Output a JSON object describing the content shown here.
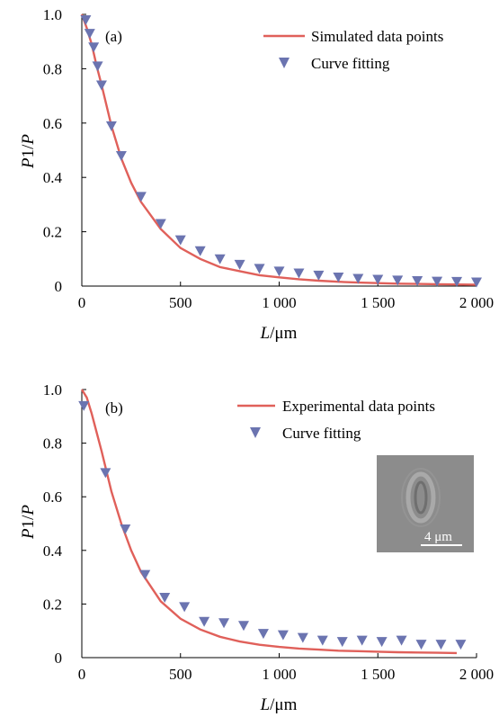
{
  "chart_data": [
    {
      "type": "line",
      "panel_label": "(a)",
      "xlabel_italic": "L",
      "xlabel_unit": "/μm",
      "ylabel_p1": "P",
      "ylabel_mid": "1/",
      "ylabel_p2": "P",
      "xlim": [
        0,
        2000
      ],
      "ylim": [
        0,
        1.0
      ],
      "x_ticks": [
        0,
        500,
        1000,
        1500,
        2000
      ],
      "x_tick_labels": [
        "0",
        "500",
        "1 000",
        "1 500",
        "2 000"
      ],
      "y_ticks": [
        0,
        0.2,
        0.4,
        0.6,
        0.8,
        1.0
      ],
      "y_tick_labels": [
        "0",
        "0.2",
        "0.4",
        "0.6",
        "0.8",
        "1.0"
      ],
      "legend_position": "top-right",
      "series": [
        {
          "name": "Simulated data points",
          "kind": "line",
          "color": "#e0605a",
          "x": [
            0,
            25,
            50,
            75,
            100,
            150,
            200,
            250,
            300,
            400,
            500,
            600,
            700,
            800,
            900,
            1000,
            1100,
            1200,
            1300,
            1400,
            1500,
            1600,
            1700,
            1800,
            1900,
            2000
          ],
          "y": [
            1.0,
            0.95,
            0.89,
            0.81,
            0.74,
            0.59,
            0.47,
            0.38,
            0.31,
            0.21,
            0.14,
            0.1,
            0.07,
            0.055,
            0.04,
            0.032,
            0.025,
            0.02,
            0.016,
            0.013,
            0.011,
            0.009,
            0.008,
            0.007,
            0.006,
            0.005
          ]
        },
        {
          "name": "Curve fitting",
          "kind": "marker",
          "color": "#6b74b0",
          "x": [
            20,
            40,
            60,
            80,
            100,
            150,
            200,
            300,
            400,
            500,
            600,
            700,
            800,
            900,
            1000,
            1100,
            1200,
            1300,
            1400,
            1500,
            1600,
            1700,
            1800,
            1900,
            2000
          ],
          "y": [
            0.98,
            0.93,
            0.88,
            0.81,
            0.74,
            0.59,
            0.48,
            0.33,
            0.23,
            0.17,
            0.13,
            0.1,
            0.08,
            0.065,
            0.055,
            0.048,
            0.04,
            0.033,
            0.028,
            0.025,
            0.022,
            0.02,
            0.018,
            0.017,
            0.015
          ]
        }
      ]
    },
    {
      "type": "line",
      "panel_label": "(b)",
      "xlabel_italic": "L",
      "xlabel_unit": "/μm",
      "ylabel_p1": "P",
      "ylabel_mid": "1/",
      "ylabel_p2": "P",
      "xlim": [
        0,
        2000
      ],
      "ylim": [
        0,
        1.0
      ],
      "x_ticks": [
        0,
        500,
        1000,
        1500,
        2000
      ],
      "x_tick_labels": [
        "0",
        "500",
        "1 000",
        "1 500",
        "2 000"
      ],
      "y_ticks": [
        0,
        0.2,
        0.4,
        0.6,
        0.8,
        1.0
      ],
      "y_tick_labels": [
        "0",
        "0.2",
        "0.4",
        "0.6",
        "0.8",
        "1.0"
      ],
      "legend_position": "top-right",
      "inset_scale_label": "4 μm",
      "series": [
        {
          "name": "Experimental data points",
          "kind": "line",
          "color": "#e0605a",
          "x": [
            0,
            25,
            50,
            75,
            100,
            150,
            200,
            250,
            300,
            400,
            500,
            600,
            700,
            800,
            900,
            1000,
            1100,
            1200,
            1300,
            1400,
            1500,
            1600,
            1700,
            1800,
            1900
          ],
          "y": [
            1.0,
            0.97,
            0.91,
            0.84,
            0.77,
            0.62,
            0.5,
            0.4,
            0.32,
            0.21,
            0.145,
            0.105,
            0.078,
            0.06,
            0.048,
            0.04,
            0.034,
            0.03,
            0.026,
            0.024,
            0.022,
            0.02,
            0.019,
            0.018,
            0.017
          ]
        },
        {
          "name": "Curve fitting",
          "kind": "marker",
          "color": "#6b74b0",
          "x": [
            10,
            120,
            220,
            320,
            420,
            520,
            620,
            720,
            820,
            920,
            1020,
            1120,
            1220,
            1320,
            1420,
            1520,
            1620,
            1720,
            1820,
            1920
          ],
          "y": [
            0.94,
            0.69,
            0.48,
            0.31,
            0.225,
            0.19,
            0.135,
            0.13,
            0.12,
            0.09,
            0.085,
            0.075,
            0.065,
            0.06,
            0.065,
            0.06,
            0.065,
            0.05,
            0.05,
            0.05
          ]
        }
      ]
    }
  ]
}
